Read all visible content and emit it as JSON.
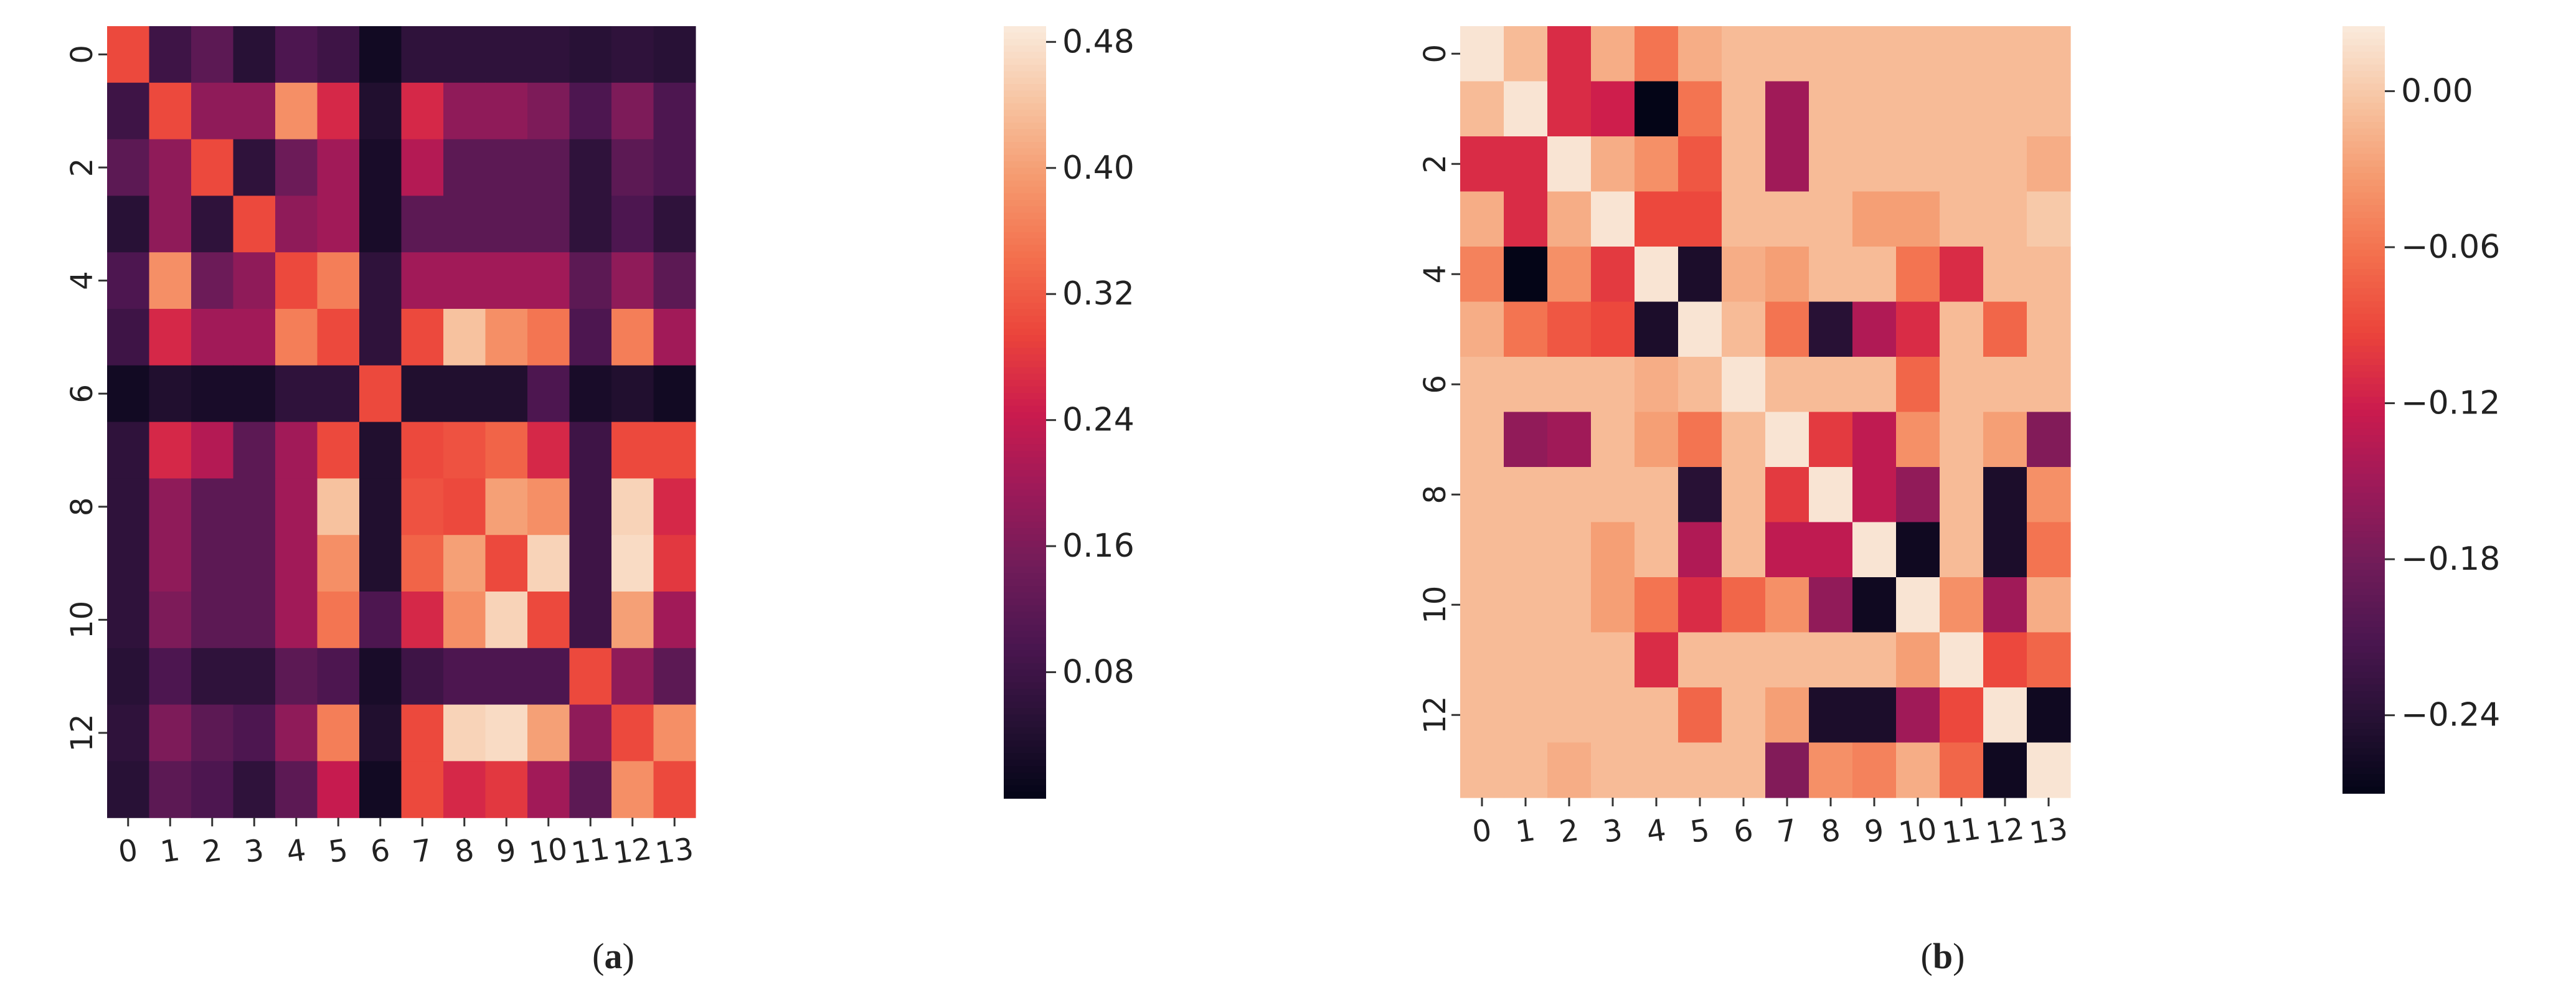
{
  "chart_data": [
    {
      "type": "heatmap",
      "panel_label": "a",
      "x_tick_labels": [
        "0",
        "1",
        "2",
        "3",
        "4",
        "5",
        "6",
        "7",
        "8",
        "9",
        "10",
        "11",
        "12",
        "13"
      ],
      "y_tick_labels": [
        "0",
        "2",
        "4",
        "6",
        "8",
        "10",
        "12"
      ],
      "colorbar": {
        "colormap": "rocket",
        "range": [
          0.0,
          0.49
        ],
        "ticks": [
          0.48,
          0.4,
          0.32,
          0.24,
          0.16,
          0.08
        ],
        "tick_labels": [
          "0.48",
          "0.40",
          "0.32",
          "0.24",
          "0.16",
          "0.08"
        ]
      },
      "grid": false,
      "values": [
        [
          0.3,
          0.08,
          0.12,
          0.05,
          0.1,
          0.08,
          0.02,
          0.06,
          0.06,
          0.06,
          0.06,
          0.05,
          0.06,
          0.05
        ],
        [
          0.08,
          0.3,
          0.18,
          0.18,
          0.38,
          0.26,
          0.04,
          0.26,
          0.18,
          0.18,
          0.16,
          0.1,
          0.16,
          0.1
        ],
        [
          0.12,
          0.18,
          0.3,
          0.06,
          0.14,
          0.2,
          0.03,
          0.22,
          0.12,
          0.12,
          0.12,
          0.06,
          0.12,
          0.1
        ],
        [
          0.05,
          0.18,
          0.06,
          0.3,
          0.18,
          0.2,
          0.03,
          0.12,
          0.12,
          0.12,
          0.12,
          0.06,
          0.1,
          0.06
        ],
        [
          0.1,
          0.38,
          0.14,
          0.18,
          0.3,
          0.36,
          0.06,
          0.2,
          0.2,
          0.2,
          0.2,
          0.12,
          0.18,
          0.12
        ],
        [
          0.08,
          0.26,
          0.2,
          0.2,
          0.36,
          0.3,
          0.06,
          0.3,
          0.44,
          0.38,
          0.35,
          0.1,
          0.36,
          0.2
        ],
        [
          0.02,
          0.04,
          0.03,
          0.03,
          0.06,
          0.06,
          0.3,
          0.04,
          0.04,
          0.04,
          0.1,
          0.03,
          0.04,
          0.02
        ],
        [
          0.06,
          0.26,
          0.22,
          0.12,
          0.2,
          0.3,
          0.04,
          0.3,
          0.31,
          0.33,
          0.26,
          0.08,
          0.3,
          0.3
        ],
        [
          0.06,
          0.18,
          0.12,
          0.12,
          0.2,
          0.44,
          0.04,
          0.31,
          0.3,
          0.4,
          0.38,
          0.08,
          0.46,
          0.26
        ],
        [
          0.06,
          0.18,
          0.12,
          0.12,
          0.2,
          0.38,
          0.04,
          0.33,
          0.4,
          0.3,
          0.46,
          0.08,
          0.47,
          0.28
        ],
        [
          0.06,
          0.16,
          0.12,
          0.12,
          0.2,
          0.35,
          0.1,
          0.26,
          0.38,
          0.46,
          0.3,
          0.08,
          0.4,
          0.2
        ],
        [
          0.05,
          0.1,
          0.06,
          0.06,
          0.12,
          0.1,
          0.03,
          0.08,
          0.1,
          0.1,
          0.1,
          0.3,
          0.18,
          0.12
        ],
        [
          0.06,
          0.16,
          0.12,
          0.1,
          0.18,
          0.36,
          0.04,
          0.3,
          0.46,
          0.47,
          0.4,
          0.18,
          0.3,
          0.38
        ],
        [
          0.05,
          0.12,
          0.1,
          0.06,
          0.12,
          0.24,
          0.02,
          0.3,
          0.26,
          0.28,
          0.2,
          0.12,
          0.38,
          0.3
        ]
      ]
    },
    {
      "type": "heatmap",
      "panel_label": "b",
      "x_tick_labels": [
        "0",
        "1",
        "2",
        "3",
        "4",
        "5",
        "6",
        "7",
        "8",
        "9",
        "10",
        "11",
        "12",
        "13"
      ],
      "y_tick_labels": [
        "0",
        "2",
        "4",
        "6",
        "8",
        "10",
        "12"
      ],
      "colorbar": {
        "colormap": "rocket",
        "range": [
          -0.27,
          0.025
        ],
        "ticks": [
          0.0,
          -0.06,
          -0.12,
          -0.18,
          -0.24
        ],
        "tick_labels": [
          "0.00",
          "−0.06",
          "−0.12",
          "−0.18",
          "−0.24"
        ]
      },
      "grid": false,
      "values": [
        [
          0.02,
          -0.01,
          -0.11,
          -0.02,
          -0.06,
          -0.02,
          -0.01,
          -0.01,
          -0.01,
          -0.01,
          -0.01,
          -0.01,
          -0.01,
          -0.01
        ],
        [
          -0.01,
          0.02,
          -0.11,
          -0.12,
          -0.27,
          -0.06,
          -0.01,
          -0.15,
          -0.01,
          -0.01,
          -0.01,
          -0.01,
          -0.01,
          -0.01
        ],
        [
          -0.11,
          -0.11,
          0.02,
          -0.02,
          -0.04,
          -0.08,
          -0.01,
          -0.15,
          -0.01,
          -0.01,
          -0.01,
          -0.01,
          -0.01,
          -0.02
        ],
        [
          -0.02,
          -0.11,
          -0.02,
          0.02,
          -0.09,
          -0.09,
          -0.01,
          -0.01,
          -0.01,
          -0.03,
          -0.03,
          -0.01,
          -0.01,
          0.0
        ],
        [
          -0.05,
          -0.27,
          -0.04,
          -0.1,
          0.02,
          -0.25,
          -0.02,
          -0.03,
          -0.01,
          -0.01,
          -0.06,
          -0.11,
          -0.01,
          -0.01
        ],
        [
          -0.02,
          -0.06,
          -0.08,
          -0.09,
          -0.25,
          0.02,
          -0.01,
          -0.06,
          -0.24,
          -0.14,
          -0.11,
          -0.01,
          -0.07,
          -0.01
        ],
        [
          -0.01,
          -0.01,
          -0.01,
          -0.01,
          -0.02,
          -0.01,
          0.02,
          -0.01,
          -0.01,
          -0.01,
          -0.07,
          -0.01,
          -0.01,
          -0.01
        ],
        [
          -0.01,
          -0.16,
          -0.15,
          -0.01,
          -0.03,
          -0.06,
          -0.01,
          0.02,
          -0.1,
          -0.13,
          -0.04,
          -0.01,
          -0.03,
          -0.17
        ],
        [
          -0.01,
          -0.01,
          -0.01,
          -0.01,
          -0.01,
          -0.24,
          -0.01,
          -0.1,
          0.02,
          -0.13,
          -0.16,
          -0.01,
          -0.25,
          -0.04
        ],
        [
          -0.01,
          -0.01,
          -0.01,
          -0.03,
          -0.01,
          -0.14,
          -0.01,
          -0.13,
          -0.13,
          0.02,
          -0.26,
          -0.01,
          -0.25,
          -0.06
        ],
        [
          -0.01,
          -0.01,
          -0.01,
          -0.03,
          -0.06,
          -0.11,
          -0.07,
          -0.04,
          -0.16,
          -0.26,
          0.02,
          -0.04,
          -0.15,
          -0.02
        ],
        [
          -0.01,
          -0.01,
          -0.01,
          -0.01,
          -0.11,
          -0.01,
          -0.01,
          -0.01,
          -0.01,
          -0.01,
          -0.03,
          0.02,
          -0.09,
          -0.07
        ],
        [
          -0.01,
          -0.01,
          -0.01,
          -0.01,
          -0.01,
          -0.07,
          -0.01,
          -0.03,
          -0.25,
          -0.25,
          -0.15,
          -0.09,
          0.02,
          -0.26
        ],
        [
          -0.01,
          -0.01,
          -0.02,
          -0.01,
          -0.01,
          -0.01,
          -0.01,
          -0.17,
          -0.04,
          -0.05,
          -0.02,
          -0.07,
          -0.26,
          0.02
        ]
      ]
    }
  ],
  "captions": [
    {
      "open": "(",
      "letter": "a",
      "close": ")"
    },
    {
      "open": "(",
      "letter": "b",
      "close": ")"
    }
  ]
}
